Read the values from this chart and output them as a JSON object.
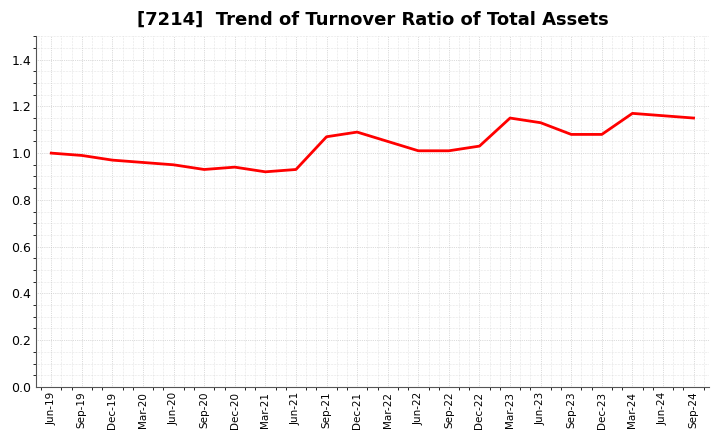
{
  "title": "[7214]  Trend of Turnover Ratio of Total Assets",
  "title_fontsize": 13,
  "title_fontweight": "bold",
  "line_color": "#ff0000",
  "line_width": 2.0,
  "background_color": "#ffffff",
  "grid_color": "#aaaaaa",
  "ylim": [
    0.0,
    1.5
  ],
  "yticks": [
    0.0,
    0.2,
    0.4,
    0.6,
    0.8,
    1.0,
    1.2,
    1.4
  ],
  "x_labels": [
    "Jun-19",
    "Sep-19",
    "Dec-19",
    "Mar-20",
    "Jun-20",
    "Sep-20",
    "Dec-20",
    "Mar-21",
    "Jun-21",
    "Sep-21",
    "Dec-21",
    "Mar-22",
    "Jun-22",
    "Sep-22",
    "Dec-22",
    "Mar-23",
    "Jun-23",
    "Sep-23",
    "Dec-23",
    "Mar-24",
    "Jun-24",
    "Sep-24"
  ],
  "values": [
    1.0,
    0.99,
    0.97,
    0.96,
    0.95,
    0.93,
    0.94,
    0.92,
    0.93,
    1.07,
    1.09,
    1.05,
    1.01,
    1.01,
    1.03,
    1.15,
    1.13,
    1.08,
    1.08,
    1.17,
    1.16,
    1.15
  ]
}
